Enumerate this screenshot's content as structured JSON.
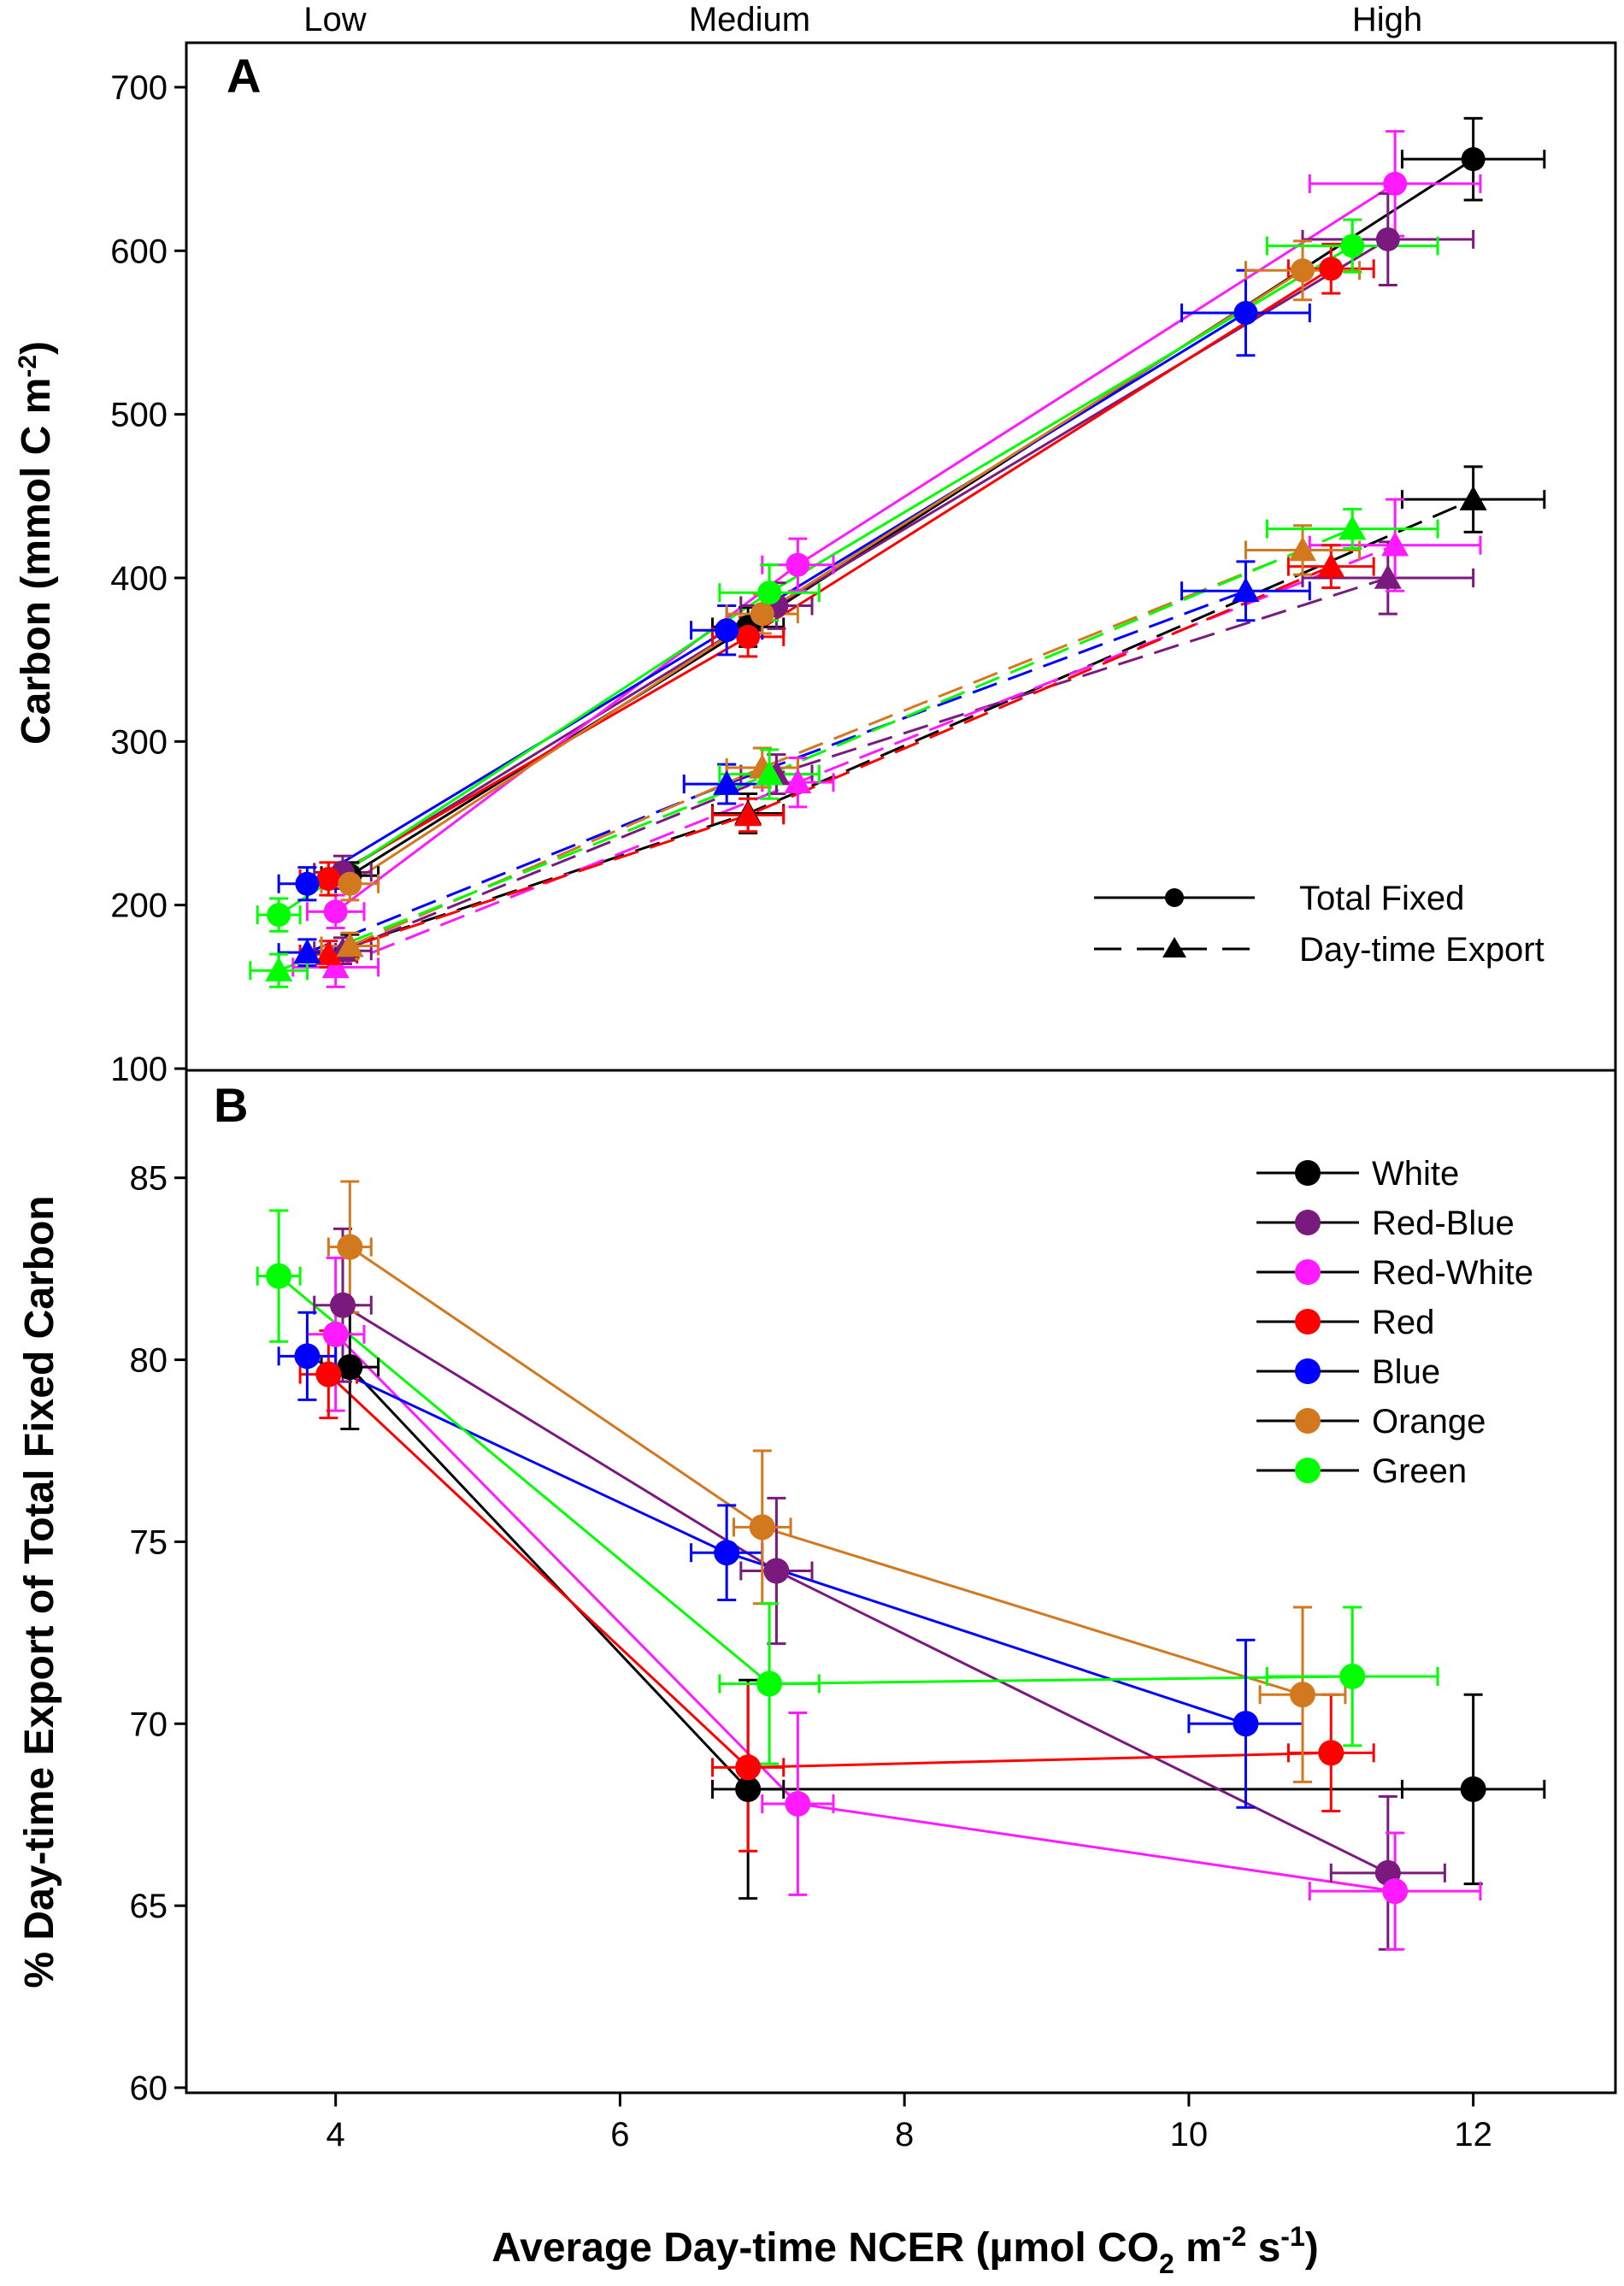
{
  "figure": {
    "x_axis_title_main": "Average Day-time NCER (µmol CO",
    "x_axis_title_sub": "2",
    "x_axis_title_m": " m",
    "x_axis_title_exp1": "-2",
    "x_axis_title_s": " s",
    "x_axis_title_exp2": "-1",
    "x_axis_title_close": ")",
    "light_levels": [
      "Low",
      "Medium",
      "High"
    ],
    "x_ticks": [
      4,
      6,
      8,
      10,
      12
    ]
  },
  "colors": {
    "White": "#000000",
    "Red-Blue": "#7b1a7e",
    "Red-White": "#ff1aff",
    "Red": "#ff0000",
    "Blue": "#0000ff",
    "Orange": "#d2781e",
    "Green": "#00ff00"
  },
  "chart_data": [
    {
      "panel": "A",
      "type": "scatter",
      "title": "",
      "xlabel": "Average Day-time NCER (µmol CO2 m-2 s-1)",
      "ylabel": "Carbon (mmol C m-2)",
      "ylabel_main": "Carbon (mmol C m",
      "ylabel_exp": "-2",
      "ylabel_close": ")",
      "xlim": [
        2.95,
        13.0
      ],
      "ylim": [
        100,
        700
      ],
      "yticks": [
        100,
        200,
        300,
        400,
        500,
        600,
        700
      ],
      "legend": [
        {
          "label": "Total Fixed",
          "marker": "circle",
          "line": "solid"
        },
        {
          "label": "Day-time Export",
          "marker": "triangle",
          "line": "dashed"
        }
      ],
      "series": [
        {
          "name": "White",
          "kind": "Total Fixed",
          "points": [
            {
              "x": 4.1,
              "y": 218,
              "xerr": 0.2,
              "yerr": 8
            },
            {
              "x": 6.9,
              "y": 370,
              "xerr": 0.25,
              "yerr": 12
            },
            {
              "x": 12.0,
              "y": 656,
              "xerr": 0.5,
              "yerr": 25
            }
          ]
        },
        {
          "name": "Red-Blue",
          "kind": "Total Fixed",
          "points": [
            {
              "x": 4.05,
              "y": 220,
              "xerr": 0.2,
              "yerr": 10
            },
            {
              "x": 7.1,
              "y": 383,
              "xerr": 0.25,
              "yerr": 14
            },
            {
              "x": 11.4,
              "y": 607,
              "xerr": 0.6,
              "yerr": 28
            }
          ]
        },
        {
          "name": "Red-White",
          "kind": "Total Fixed",
          "points": [
            {
              "x": 4.0,
              "y": 196,
              "xerr": 0.2,
              "yerr": 10
            },
            {
              "x": 7.25,
              "y": 408,
              "xerr": 0.25,
              "yerr": 16
            },
            {
              "x": 11.45,
              "y": 641,
              "xerr": 0.6,
              "yerr": 32
            }
          ]
        },
        {
          "name": "Red",
          "kind": "Total Fixed",
          "points": [
            {
              "x": 3.95,
              "y": 216,
              "xerr": 0.2,
              "yerr": 10
            },
            {
              "x": 6.9,
              "y": 364,
              "xerr": 0.25,
              "yerr": 12
            },
            {
              "x": 11.0,
              "y": 589,
              "xerr": 0.3,
              "yerr": 15
            }
          ]
        },
        {
          "name": "Blue",
          "kind": "Total Fixed",
          "points": [
            {
              "x": 3.8,
              "y": 213,
              "xerr": 0.2,
              "yerr": 10
            },
            {
              "x": 6.75,
              "y": 368,
              "xerr": 0.25,
              "yerr": 15
            },
            {
              "x": 10.4,
              "y": 562,
              "xerr": 0.45,
              "yerr": 26
            }
          ]
        },
        {
          "name": "Orange",
          "kind": "Total Fixed",
          "points": [
            {
              "x": 4.1,
              "y": 213,
              "xerr": 0.2,
              "yerr": 10
            },
            {
              "x": 7.0,
              "y": 378,
              "xerr": 0.25,
              "yerr": 12
            },
            {
              "x": 10.8,
              "y": 588,
              "xerr": 0.4,
              "yerr": 18
            }
          ]
        },
        {
          "name": "Green",
          "kind": "Total Fixed",
          "points": [
            {
              "x": 3.6,
              "y": 194,
              "xerr": 0.15,
              "yerr": 10
            },
            {
              "x": 7.05,
              "y": 391,
              "xerr": 0.35,
              "yerr": 17
            },
            {
              "x": 11.15,
              "y": 603,
              "xerr": 0.6,
              "yerr": 16
            }
          ]
        },
        {
          "name": "White",
          "kind": "Day-time Export",
          "points": [
            {
              "x": 4.1,
              "y": 175,
              "xerr": 0.2,
              "yerr": 7
            },
            {
              "x": 6.9,
              "y": 256,
              "xerr": 0.25,
              "yerr": 12
            },
            {
              "x": 12.0,
              "y": 448,
              "xerr": 0.5,
              "yerr": 20
            }
          ]
        },
        {
          "name": "Red-Blue",
          "kind": "Day-time Export",
          "points": [
            {
              "x": 4.05,
              "y": 172,
              "xerr": 0.2,
              "yerr": 8
            },
            {
              "x": 7.1,
              "y": 280,
              "xerr": 0.25,
              "yerr": 12
            },
            {
              "x": 11.4,
              "y": 400,
              "xerr": 0.6,
              "yerr": 22
            }
          ]
        },
        {
          "name": "Red-White",
          "kind": "Day-time Export",
          "points": [
            {
              "x": 4.0,
              "y": 162,
              "xerr": 0.3,
              "yerr": 12
            },
            {
              "x": 7.25,
              "y": 275,
              "xerr": 0.25,
              "yerr": 15
            },
            {
              "x": 11.45,
              "y": 420,
              "xerr": 0.6,
              "yerr": 28
            }
          ]
        },
        {
          "name": "Red",
          "kind": "Day-time Export",
          "points": [
            {
              "x": 3.95,
              "y": 170,
              "xerr": 0.2,
              "yerr": 8
            },
            {
              "x": 6.9,
              "y": 255,
              "xerr": 0.25,
              "yerr": 10
            },
            {
              "x": 11.0,
              "y": 407,
              "xerr": 0.3,
              "yerr": 13
            }
          ]
        },
        {
          "name": "Blue",
          "kind": "Day-time Export",
          "points": [
            {
              "x": 3.8,
              "y": 171,
              "xerr": 0.2,
              "yerr": 8
            },
            {
              "x": 6.75,
              "y": 274,
              "xerr": 0.3,
              "yerr": 12
            },
            {
              "x": 10.4,
              "y": 392,
              "xerr": 0.45,
              "yerr": 18
            }
          ]
        },
        {
          "name": "Orange",
          "kind": "Day-time Export",
          "points": [
            {
              "x": 4.1,
              "y": 175,
              "xerr": 0.2,
              "yerr": 8
            },
            {
              "x": 7.0,
              "y": 284,
              "xerr": 0.25,
              "yerr": 12
            },
            {
              "x": 10.8,
              "y": 417,
              "xerr": 0.4,
              "yerr": 15
            }
          ]
        },
        {
          "name": "Green",
          "kind": "Day-time Export",
          "points": [
            {
              "x": 3.6,
              "y": 160,
              "xerr": 0.2,
              "yerr": 10
            },
            {
              "x": 7.05,
              "y": 280,
              "xerr": 0.35,
              "yerr": 15
            },
            {
              "x": 11.15,
              "y": 430,
              "xerr": 0.6,
              "yerr": 12
            }
          ]
        }
      ]
    },
    {
      "panel": "B",
      "type": "scatter",
      "title": "",
      "xlabel": "Average Day-time NCER (µmol CO2 m-2 s-1)",
      "ylabel": "% Day-time Export of Total Fixed Carbon",
      "xlim": [
        2.95,
        13.0
      ],
      "ylim": [
        60,
        88
      ],
      "yticks": [
        60,
        65,
        70,
        75,
        80,
        85
      ],
      "legend_placement": "top-right",
      "series": [
        {
          "name": "White",
          "points": [
            {
              "x": 4.1,
              "y": 79.8,
              "xerr": 0.2,
              "yerr": 1.7
            },
            {
              "x": 6.9,
              "y": 68.2,
              "xerr": 0.25,
              "yerr": 3.0
            },
            {
              "x": 12.0,
              "y": 68.2,
              "xerr": 0.5,
              "yerr": 2.6
            }
          ]
        },
        {
          "name": "Red-Blue",
          "points": [
            {
              "x": 4.05,
              "y": 81.5,
              "xerr": 0.2,
              "yerr": 2.1
            },
            {
              "x": 7.1,
              "y": 74.2,
              "xerr": 0.25,
              "yerr": 2.0
            },
            {
              "x": 11.4,
              "y": 65.9,
              "xerr": 0.4,
              "yerr": 2.1
            }
          ]
        },
        {
          "name": "Red-White",
          "points": [
            {
              "x": 4.0,
              "y": 80.7,
              "xerr": 0.2,
              "yerr": 2.1
            },
            {
              "x": 7.25,
              "y": 67.8,
              "xerr": 0.25,
              "yerr": 2.5
            },
            {
              "x": 11.45,
              "y": 65.4,
              "xerr": 0.6,
              "yerr": 1.6
            }
          ]
        },
        {
          "name": "Red",
          "points": [
            {
              "x": 3.95,
              "y": 79.6,
              "xerr": 0.2,
              "yerr": 1.2
            },
            {
              "x": 6.9,
              "y": 68.8,
              "xerr": 0.25,
              "yerr": 2.3
            },
            {
              "x": 11.0,
              "y": 69.2,
              "xerr": 0.3,
              "yerr": 1.6
            }
          ]
        },
        {
          "name": "Blue",
          "points": [
            {
              "x": 3.8,
              "y": 80.1,
              "xerr": 0.2,
              "yerr": 1.2
            },
            {
              "x": 6.75,
              "y": 74.7,
              "xerr": 0.25,
              "yerr": 1.3
            },
            {
              "x": 10.4,
              "y": 70.0,
              "xerr": 0.4,
              "yerr": 2.3
            }
          ]
        },
        {
          "name": "Orange",
          "points": [
            {
              "x": 4.1,
              "y": 83.1,
              "xerr": 0.15,
              "yerr": 1.8
            },
            {
              "x": 7.0,
              "y": 75.4,
              "xerr": 0.2,
              "yerr": 2.1
            },
            {
              "x": 10.8,
              "y": 70.8,
              "xerr": 0.3,
              "yerr": 2.4
            }
          ]
        },
        {
          "name": "Green",
          "points": [
            {
              "x": 3.6,
              "y": 82.3,
              "xerr": 0.15,
              "yerr": 1.8
            },
            {
              "x": 7.05,
              "y": 71.1,
              "xerr": 0.35,
              "yerr": 2.2
            },
            {
              "x": 11.15,
              "y": 71.3,
              "xerr": 0.6,
              "yerr": 1.9
            }
          ]
        }
      ]
    }
  ]
}
